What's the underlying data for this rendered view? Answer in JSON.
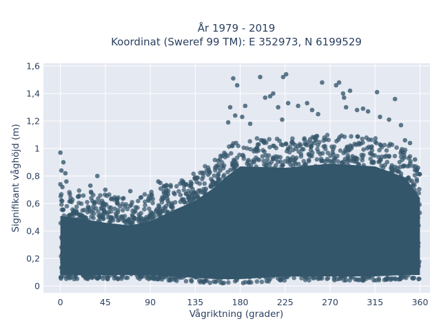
{
  "chart_data": {
    "type": "scatter",
    "title_line1": "År 1979 - 2019",
    "title_line2": "Koordinat (Sweref 99 TM): E 352973, N 6199529",
    "xlabel": "Vågriktning (grader)",
    "ylabel": "Signifikant våghöjd (m)",
    "xlim": [
      -17,
      370
    ],
    "ylim": [
      -0.05,
      1.62
    ],
    "x_ticks": [
      0,
      45,
      90,
      135,
      180,
      225,
      270,
      315,
      360
    ],
    "x_tick_labels": [
      "0",
      "45",
      "90",
      "135",
      "180",
      "225",
      "270",
      "315",
      "360"
    ],
    "y_ticks": [
      0,
      0.2,
      0.4,
      0.6,
      0.8,
      1.0,
      1.2,
      1.4,
      1.6
    ],
    "y_tick_labels": [
      "0",
      "0,2",
      "0,4",
      "0,6",
      "0,8",
      "1",
      "1,2",
      "1,4",
      "1,6"
    ],
    "grid": true,
    "marker_color": "#34566b",
    "background_color": "#e5e9f2",
    "envelope": {
      "x": [
        0,
        20,
        45,
        70,
        90,
        110,
        135,
        155,
        165,
        180,
        225,
        270,
        315,
        345,
        360
      ],
      "y_min": [
        0.05,
        0.05,
        0.05,
        0.05,
        0.05,
        0.04,
        0.03,
        0.02,
        0.02,
        0.02,
        0.04,
        0.04,
        0.04,
        0.05,
        0.05
      ],
      "y_dense_max": [
        0.57,
        0.55,
        0.52,
        0.5,
        0.53,
        0.6,
        0.68,
        0.78,
        0.85,
        0.93,
        0.92,
        0.95,
        0.93,
        0.85,
        0.7
      ]
    },
    "outliers": [
      {
        "x": 0,
        "y": 0.97
      },
      {
        "x": 3,
        "y": 0.9
      },
      {
        "x": 1,
        "y": 0.84
      },
      {
        "x": 5,
        "y": 0.82
      },
      {
        "x": 0,
        "y": 0.74
      },
      {
        "x": 2,
        "y": 0.72
      },
      {
        "x": 6,
        "y": 0.76
      },
      {
        "x": 37,
        "y": 0.8
      },
      {
        "x": 30,
        "y": 0.73
      },
      {
        "x": 45,
        "y": 0.7
      },
      {
        "x": 70,
        "y": 0.69
      },
      {
        "x": 98,
        "y": 0.76
      },
      {
        "x": 100,
        "y": 0.75
      },
      {
        "x": 126,
        "y": 0.74
      },
      {
        "x": 135,
        "y": 0.78
      },
      {
        "x": 148,
        "y": 0.81
      },
      {
        "x": 155,
        "y": 0.86
      },
      {
        "x": 160,
        "y": 0.84
      },
      {
        "x": 173,
        "y": 1.51
      },
      {
        "x": 177,
        "y": 1.46
      },
      {
        "x": 170,
        "y": 1.3
      },
      {
        "x": 168,
        "y": 1.19
      },
      {
        "x": 175,
        "y": 1.24
      },
      {
        "x": 182,
        "y": 1.23
      },
      {
        "x": 185,
        "y": 1.31
      },
      {
        "x": 190,
        "y": 1.18
      },
      {
        "x": 200,
        "y": 1.52
      },
      {
        "x": 205,
        "y": 1.37
      },
      {
        "x": 210,
        "y": 1.38
      },
      {
        "x": 213,
        "y": 1.4
      },
      {
        "x": 218,
        "y": 1.3
      },
      {
        "x": 222,
        "y": 1.21
      },
      {
        "x": 226,
        "y": 1.54
      },
      {
        "x": 223,
        "y": 1.52
      },
      {
        "x": 228,
        "y": 1.33
      },
      {
        "x": 238,
        "y": 1.31
      },
      {
        "x": 247,
        "y": 1.33
      },
      {
        "x": 252,
        "y": 1.28
      },
      {
        "x": 258,
        "y": 1.25
      },
      {
        "x": 262,
        "y": 1.48
      },
      {
        "x": 276,
        "y": 1.46
      },
      {
        "x": 279,
        "y": 1.48
      },
      {
        "x": 283,
        "y": 1.4
      },
      {
        "x": 284,
        "y": 1.37
      },
      {
        "x": 290,
        "y": 1.42
      },
      {
        "x": 286,
        "y": 1.3
      },
      {
        "x": 297,
        "y": 1.28
      },
      {
        "x": 303,
        "y": 1.29
      },
      {
        "x": 308,
        "y": 1.27
      },
      {
        "x": 317,
        "y": 1.41
      },
      {
        "x": 320,
        "y": 1.23
      },
      {
        "x": 329,
        "y": 1.21
      },
      {
        "x": 335,
        "y": 1.36
      },
      {
        "x": 341,
        "y": 1.17
      },
      {
        "x": 345,
        "y": 1.06
      },
      {
        "x": 350,
        "y": 1.04
      },
      {
        "x": 355,
        "y": 0.92
      },
      {
        "x": 358,
        "y": 0.86
      }
    ]
  }
}
